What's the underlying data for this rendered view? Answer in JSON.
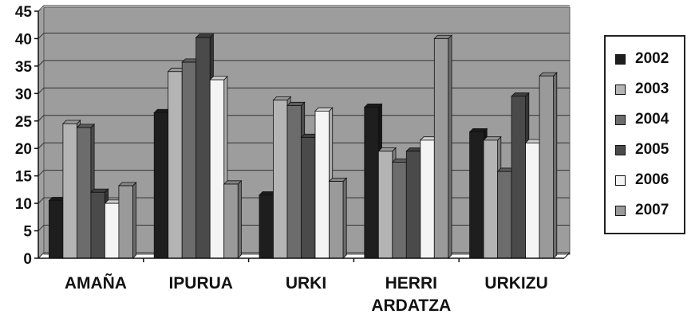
{
  "chart_data": {
    "type": "bar",
    "categories": [
      "AMAÑA",
      "IPURUA",
      "URKI",
      "HERRI\nARDATZA",
      "URKIZU"
    ],
    "series": [
      {
        "name": "2002",
        "color": "#1e1e1e",
        "values": [
          10.5,
          26.5,
          11.5,
          27.5,
          23
        ]
      },
      {
        "name": "2003",
        "color": "#b4b4b4",
        "values": [
          24.5,
          34,
          28.8,
          19.5,
          21.5
        ]
      },
      {
        "name": "2004",
        "color": "#6c6c6c",
        "values": [
          23.8,
          35.7,
          27.8,
          17.5,
          15.8
        ]
      },
      {
        "name": "2005",
        "color": "#4a4a4a",
        "values": [
          12,
          40.2,
          22,
          19.5,
          29.5
        ]
      },
      {
        "name": "2006",
        "color": "#f4f4f4",
        "values": [
          10,
          32.5,
          26.8,
          21.5,
          21
        ]
      },
      {
        "name": "2007",
        "color": "#9a9a9a",
        "values": [
          13.2,
          13.5,
          14,
          40,
          33.2
        ]
      }
    ],
    "ylim": [
      0,
      45
    ],
    "yticks": [
      "0",
      "5",
      "10",
      "15",
      "20",
      "25",
      "30",
      "35",
      "40",
      "45"
    ],
    "grid": true,
    "legend_position": "right",
    "title": "",
    "xlabel": "",
    "ylabel": ""
  }
}
